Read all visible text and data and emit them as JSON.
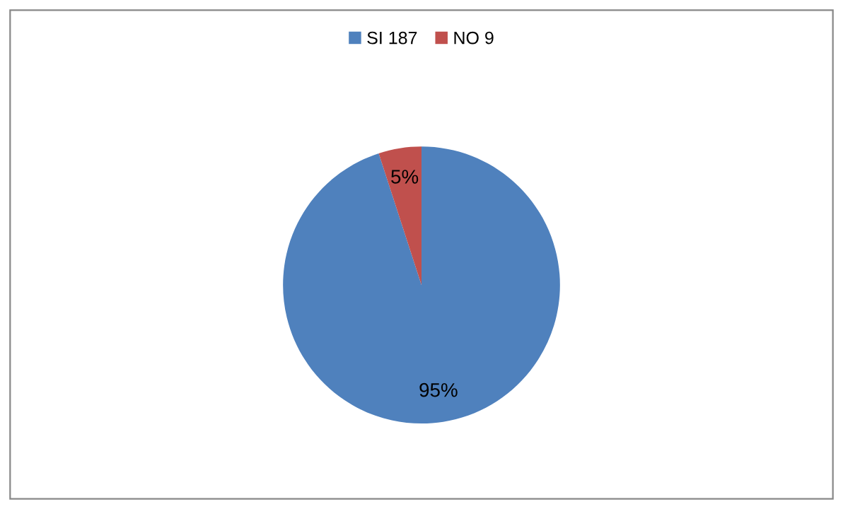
{
  "chart_data": {
    "type": "pie",
    "categories": [
      "SI 187",
      "NO 9"
    ],
    "values": [
      95,
      5
    ],
    "colors": [
      "#4f81bd",
      "#c0504d"
    ],
    "value_labels": [
      "95%",
      "5%"
    ],
    "legend": "top"
  }
}
